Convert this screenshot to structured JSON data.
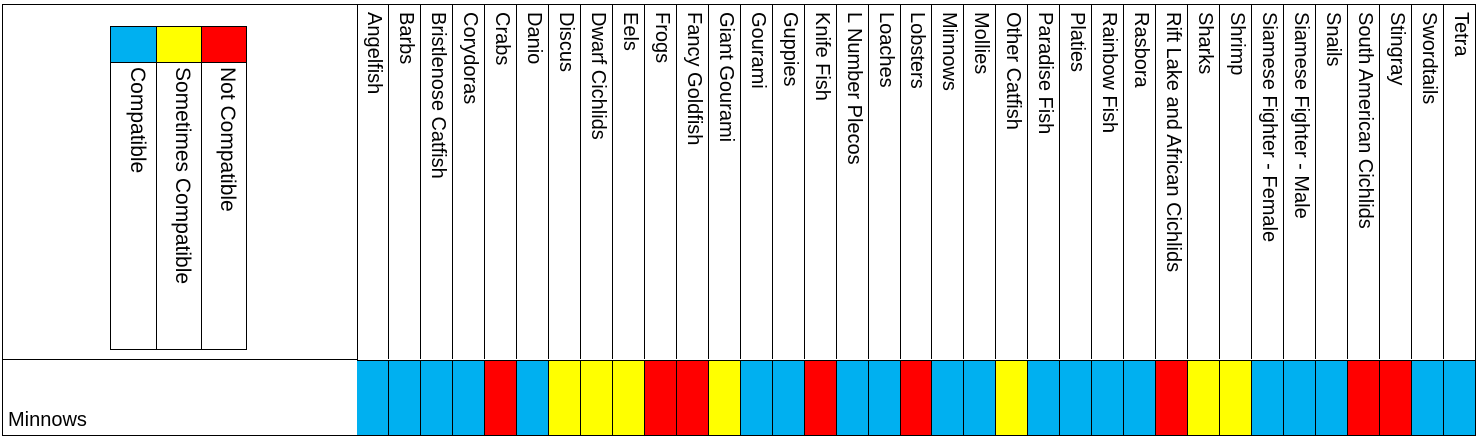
{
  "colors": {
    "compatible": "#00b0f0",
    "sometimes": "#ffff00",
    "not_compatible": "#ff0000"
  },
  "legend": [
    {
      "label": "Compatible",
      "status": "compatible"
    },
    {
      "label": "Sometimes Compatible",
      "status": "sometimes"
    },
    {
      "label": "Not Compatible",
      "status": "not_compatible"
    }
  ],
  "row": {
    "label": "Minnows"
  },
  "columns": [
    {
      "name": "Angelfish",
      "status": "compatible"
    },
    {
      "name": "Barbs",
      "status": "compatible"
    },
    {
      "name": "Bristlenose Catfish",
      "status": "compatible"
    },
    {
      "name": "Corydoras",
      "status": "compatible"
    },
    {
      "name": "Crabs",
      "status": "not_compatible"
    },
    {
      "name": "Danio",
      "status": "compatible"
    },
    {
      "name": "Discus",
      "status": "sometimes"
    },
    {
      "name": "Dwarf Cichlids",
      "status": "sometimes"
    },
    {
      "name": "Eels",
      "status": "sometimes"
    },
    {
      "name": "Frogs",
      "status": "not_compatible"
    },
    {
      "name": "Fancy Goldfish",
      "status": "not_compatible"
    },
    {
      "name": "Giant Gourami",
      "status": "sometimes"
    },
    {
      "name": "Gourami",
      "status": "compatible"
    },
    {
      "name": "Guppies",
      "status": "compatible"
    },
    {
      "name": "Knife Fish",
      "status": "not_compatible"
    },
    {
      "name": "L Number Plecos",
      "status": "compatible"
    },
    {
      "name": "Loaches",
      "status": "compatible"
    },
    {
      "name": "Lobsters",
      "status": "not_compatible"
    },
    {
      "name": "Minnows",
      "status": "compatible"
    },
    {
      "name": "Mollies",
      "status": "compatible"
    },
    {
      "name": "Other Catfish",
      "status": "sometimes"
    },
    {
      "name": "Paradise Fish",
      "status": "compatible"
    },
    {
      "name": "Platies",
      "status": "compatible"
    },
    {
      "name": "Rainbow Fish",
      "status": "compatible"
    },
    {
      "name": "Rasbora",
      "status": "compatible"
    },
    {
      "name": "Rift Lake and African Cichlids",
      "status": "not_compatible"
    },
    {
      "name": "Sharks",
      "status": "sometimes"
    },
    {
      "name": "Shrimp",
      "status": "sometimes"
    },
    {
      "name": "Siamese Fighter - Female",
      "status": "compatible"
    },
    {
      "name": "Siamese Fighter - Male",
      "status": "compatible"
    },
    {
      "name": "Snails",
      "status": "compatible"
    },
    {
      "name": "South American Cichlids",
      "status": "not_compatible"
    },
    {
      "name": "Stingray",
      "status": "not_compatible"
    },
    {
      "name": "Swordtails",
      "status": "compatible"
    },
    {
      "name": "Tetra",
      "status": "compatible"
    }
  ]
}
